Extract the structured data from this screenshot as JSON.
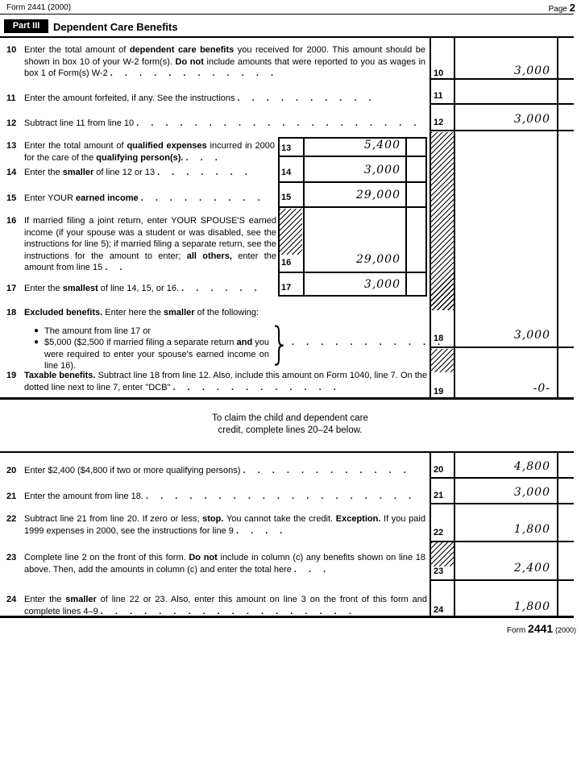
{
  "header": {
    "form_id": "Form 2441 (2000)",
    "page_word": "Page",
    "page_num": "2"
  },
  "part3": {
    "badge": "Part III",
    "title": "Dependent Care Benefits"
  },
  "rows": {
    "r10": {
      "no": "10",
      "text": "Enter the total amount of **dependent care benefits** you received for 2000. This amount should be shown in box 10 of your W-2 form(s). **Do not** include amounts that were reported to you as wages in box 1 of Form(s) W-2",
      "dots": ". . . . . . . . . . . .",
      "value": "3,000"
    },
    "r11": {
      "no": "11",
      "text": "Enter the amount forfeited, if any. See the instructions",
      "dots": ". . . . . . . . . .",
      "value": ""
    },
    "r12": {
      "no": "12",
      "text": "Subtract line 11 from line 10",
      "dots": ". . . . . . . . . . . . . . . . . . . .",
      "value": "3,000"
    },
    "r13": {
      "no": "13",
      "text": "Enter the total amount of **qualified expenses** incurred in 2000 for the care of the **qualifying person(s).**",
      "dots": ". . .",
      "value": "5,400"
    },
    "r14": {
      "no": "14",
      "text": "Enter the **smaller** of line 12 or 13",
      "dots": ". . . . . . .",
      "value": "3,000"
    },
    "r15": {
      "no": "15",
      "text": "Enter YOUR **earned income**",
      "dots": ". . . . . . . . .",
      "value": "29,000"
    },
    "r16": {
      "no": "16",
      "text": "If married filing a joint return, enter YOUR SPOUSE'S earned income (if your spouse was a student or was disabled, see the instructions for line 5); if married filing a separate return, see the instructions for the amount to enter; **all others,** enter the amount from line 15",
      "dots": ". .",
      "value": "29,000"
    },
    "r17": {
      "no": "17",
      "text": "Enter the **smallest** of line 14, 15, or 16.",
      "dots": ". . . . . .",
      "value": "3,000"
    },
    "r18": {
      "no": "18",
      "intro": "**Excluded benefits.** Enter here the **smaller** of the following:",
      "bullet_char": "●",
      "bullet1": "The amount from line 17 or",
      "bullet2": "$5,000 ($2,500 if married filing a separate return **and** you were required to enter your spouse's earned income on line 16).",
      "brace": "}",
      "dots": ". . . . . . . . . . .",
      "value": "3,000"
    },
    "r19": {
      "no": "19",
      "text": "**Taxable benefits.** Subtract line 18 from line 12. Also, include this amount on Form 1040, line 7. On the dotted line next to line 7, enter \"DCB\"",
      "dots": ". . . . . . . . . . . .",
      "value": "-0-"
    },
    "r20": {
      "no": "20",
      "text": "Enter $2,400 ($4,800 if two or more qualifying persons)",
      "dots": ". . . . . . . . . . . .",
      "value": "4,800"
    },
    "r21": {
      "no": "21",
      "text": "Enter the amount from line 18.",
      "dots": ". . . . . . . . . . . . . . . . . . .",
      "value": "3,000"
    },
    "r22": {
      "no": "22",
      "text": "Subtract line 21 from line 20. If zero or less, **stop.** You cannot take the credit. **Exception.** If you paid 1999 expenses in 2000, see the instructions for line 9",
      "dots": ". . . .",
      "value": "1,800"
    },
    "r23": {
      "no": "23",
      "text": "Complete line 2 on the front of this form. **Do not** include in column (c) any benefits shown on line 18 above. Then, add the amounts in column (c) and enter the total here",
      "dots": ". . .",
      "value": "2,400"
    },
    "r24": {
      "no": "24",
      "text": "Enter the **smaller** of line 22 or 23. Also, enter this amount on line 3 on the front of this form and complete lines 4–9",
      "dots": ". . . . . . . . . . . . . . . . . .",
      "value": "1,800"
    }
  },
  "note": "To claim the child and dependent care\ncredit, complete lines 20–24 below.",
  "footer": {
    "form_word": "Form",
    "form_number": "2441",
    "year": "(2000)"
  },
  "colors": {
    "ink": "#000000",
    "paper": "#ffffff"
  }
}
